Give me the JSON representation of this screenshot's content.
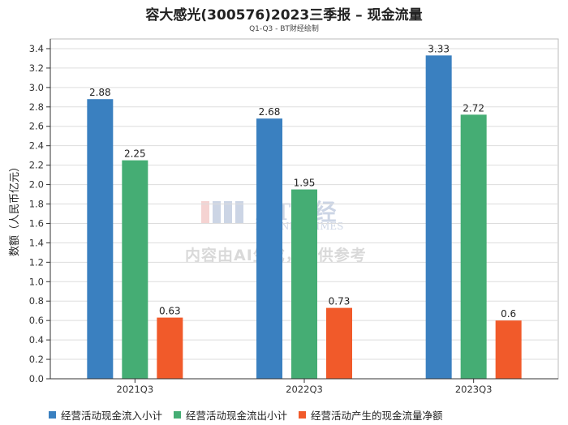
{
  "title": "容大感光(300576)2023三季报 – 现金流量",
  "subtitle": "Q1-Q3 - BT财经绘制",
  "watermark": {
    "text": "内容由AI生成，仅供参考",
    "logo_main": "BT财经",
    "logo_sub": "BUSINESSTIMES"
  },
  "colors": {
    "inflow": "#3a80c0",
    "outflow": "#45ad74",
    "net": "#f15a2a",
    "axis": "#333333",
    "grid": "#dddddd"
  },
  "chart_data": {
    "type": "bar",
    "title": "容大感光(300576)2023三季报 – 现金流量",
    "subtitle": "Q1-Q3 - BT财经绘制",
    "xlabel": "",
    "ylabel": "数额（人民币亿元）",
    "ylim": [
      0,
      3.5
    ],
    "yticks": [
      0.0,
      0.2,
      0.4,
      0.6,
      0.8,
      1.0,
      1.2,
      1.4,
      1.6,
      1.8,
      2.0,
      2.2,
      2.4,
      2.6,
      2.8,
      3.0,
      3.2,
      3.4
    ],
    "categories": [
      "2021Q3",
      "2022Q3",
      "2023Q3"
    ],
    "series": [
      {
        "name": "经营活动现金流入小计",
        "values": [
          2.88,
          2.68,
          3.33
        ]
      },
      {
        "name": "经营活动现金流出小计",
        "values": [
          2.25,
          1.95,
          2.72
        ]
      },
      {
        "name": "经营活动产生的现金流量净额",
        "values": [
          0.63,
          0.73,
          0.6
        ]
      }
    ],
    "grid": true,
    "legend_position": "bottom"
  }
}
